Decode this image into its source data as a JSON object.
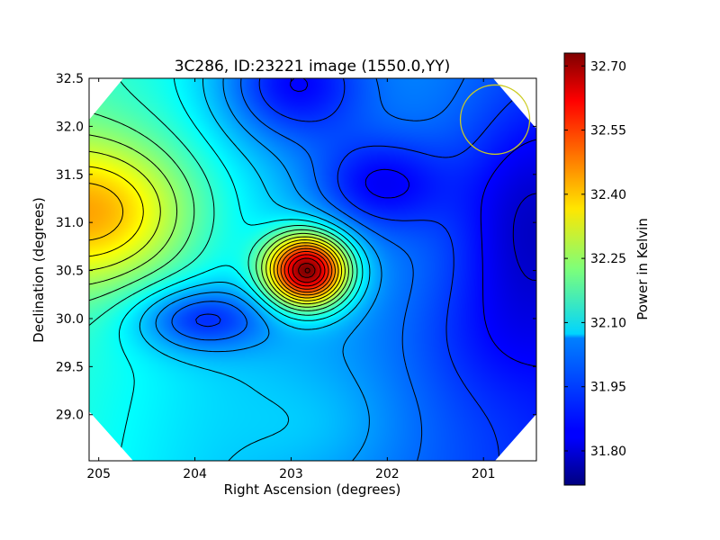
{
  "chart_data": {
    "type": "heatmap",
    "title": "3C286, ID:23221 image (1550.0,YY)",
    "xlabel": "Right Ascension (degrees)",
    "ylabel": "Declination (degrees)",
    "xlim": [
      205.1,
      200.45
    ],
    "ylim": [
      28.52,
      32.5
    ],
    "x_ticks": [
      205,
      204,
      203,
      202,
      201
    ],
    "y_ticks": [
      29.0,
      29.5,
      30.0,
      30.5,
      31.0,
      31.5,
      32.0,
      32.5
    ],
    "x_tick_labels": [
      "205",
      "204",
      "203",
      "202",
      "201"
    ],
    "y_tick_labels": [
      "29.0",
      "29.5",
      "30.0",
      "30.5",
      "31.0",
      "31.5",
      "32.0",
      "32.5"
    ],
    "colormap": "jet",
    "colorbar": {
      "label": "Power in Kelvin",
      "min": 31.72,
      "max": 32.73,
      "ticks": [
        32.7,
        32.55,
        32.4,
        32.25,
        32.1,
        31.95,
        31.8
      ],
      "tick_labels": [
        "32.70",
        "32.55",
        "32.40",
        "32.25",
        "32.10",
        "31.95",
        "31.80"
      ]
    },
    "field": {
      "background": 32.02,
      "gradient_ra": 0.05,
      "gradient_dec": 0.01,
      "features": [
        {
          "ra": 202.83,
          "dec": 30.5,
          "amplitude": 0.71,
          "sigma_ra": 0.3,
          "sigma_dec": 0.26
        },
        {
          "ra": 205.05,
          "dec": 31.1,
          "amplitude": 0.3,
          "sigma_ra": 0.75,
          "sigma_dec": 0.55
        },
        {
          "ra": 203.95,
          "dec": 30.0,
          "amplitude": -0.19,
          "sigma_ra": 0.48,
          "sigma_dec": 0.24
        },
        {
          "ra": 203.0,
          "dec": 32.45,
          "amplitude": -0.2,
          "sigma_ra": 0.55,
          "sigma_dec": 0.45
        },
        {
          "ra": 202.1,
          "dec": 31.4,
          "amplitude": -0.15,
          "sigma_ra": 0.5,
          "sigma_dec": 0.35
        },
        {
          "ra": 200.55,
          "dec": 31.0,
          "amplitude": -0.12,
          "sigma_ra": 0.5,
          "sigma_dec": 0.8
        },
        {
          "ra": 201.0,
          "dec": 29.8,
          "amplitude": -0.04,
          "sigma_ra": 0.6,
          "sigma_dec": 0.5
        },
        {
          "ra": 202.7,
          "dec": 28.9,
          "amplitude": 0.04,
          "sigma_ra": 0.6,
          "sigma_dec": 0.4
        }
      ]
    },
    "contour_levels": [
      31.8,
      31.85,
      31.9,
      31.95,
      32.0,
      32.05,
      32.1,
      32.15,
      32.2,
      32.25,
      32.3,
      32.35,
      32.4,
      32.45,
      32.5,
      32.55,
      32.6,
      32.65,
      32.7
    ],
    "peak_marker": {
      "ra": 202.83,
      "dec": 30.5
    },
    "beam_circle": {
      "ra": 200.88,
      "dec": 32.07,
      "radius_ra_deg": 0.36
    },
    "colors": {
      "contour": "#000000",
      "beam_circle": "#cccc22",
      "outside_coverage": "#ffffff"
    }
  }
}
